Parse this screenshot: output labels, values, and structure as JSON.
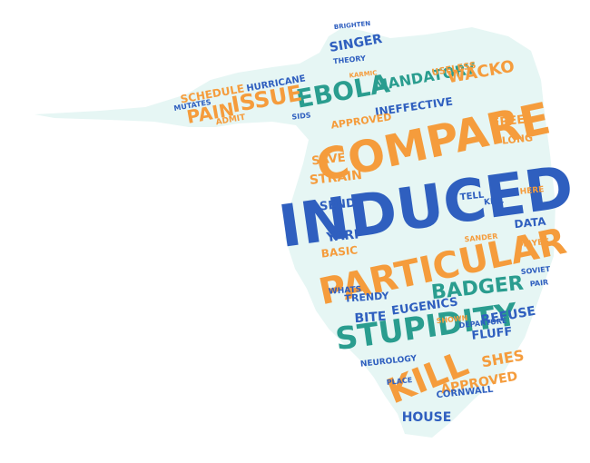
{
  "palette": {
    "shape_fill": "#e6f6f4",
    "orange": "#f59c3c",
    "blue": "#2f5fbf",
    "teal": "#2a9d8f",
    "gold": "#f2a65a"
  },
  "cloud": {
    "words": [
      {
        "text": "INDUCED",
        "color": "blue"
      },
      {
        "text": "COMPARE",
        "color": "orange"
      },
      {
        "text": "PARTICULAR",
        "color": "orange"
      },
      {
        "text": "STUPIDITY",
        "color": "teal"
      },
      {
        "text": "EBOLA",
        "color": "teal"
      },
      {
        "text": "KILL",
        "color": "orange"
      },
      {
        "text": "BADGER",
        "color": "teal"
      },
      {
        "text": "ISSUE",
        "color": "orange"
      },
      {
        "text": "PAIN",
        "color": "orange"
      },
      {
        "text": "MANDATORY",
        "color": "teal"
      },
      {
        "text": "WACKO",
        "color": "orange"
      },
      {
        "text": "SINGER",
        "color": "blue"
      },
      {
        "text": "INEFFECTIVE",
        "color": "blue"
      },
      {
        "text": "APPROVED",
        "color": "orange"
      },
      {
        "text": "APPROVED",
        "color": "orange"
      },
      {
        "text": "USELESS",
        "color": "orange"
      },
      {
        "text": "SCHEDULE",
        "color": "orange"
      },
      {
        "text": "EUGENICS",
        "color": "blue"
      },
      {
        "text": "REFUSE",
        "color": "blue"
      },
      {
        "text": "SHES",
        "color": "orange"
      },
      {
        "text": "HOUSE",
        "color": "blue"
      },
      {
        "text": "BITE",
        "color": "blue"
      },
      {
        "text": "FLUFF",
        "color": "blue"
      },
      {
        "text": "YARP",
        "color": "blue"
      },
      {
        "text": "SEND",
        "color": "blue"
      },
      {
        "text": "STRAIN",
        "color": "orange"
      },
      {
        "text": "SAVE",
        "color": "orange"
      },
      {
        "text": "FREE",
        "color": "orange"
      },
      {
        "text": "LONG",
        "color": "orange"
      },
      {
        "text": "DATA",
        "color": "blue"
      },
      {
        "text": "TELL",
        "color": "blue"
      },
      {
        "text": "TRENDY",
        "color": "blue"
      },
      {
        "text": "BASIC",
        "color": "orange"
      },
      {
        "text": "NEUROLOGY",
        "color": "blue"
      },
      {
        "text": "CORNWALL",
        "color": "blue"
      },
      {
        "text": "HURRICANE",
        "color": "blue"
      },
      {
        "text": "ADMIT",
        "color": "orange"
      },
      {
        "text": "MUTATES",
        "color": "blue"
      },
      {
        "text": "THEORY",
        "color": "blue"
      },
      {
        "text": "SIDS",
        "color": "blue"
      },
      {
        "text": "BRIGHTEN",
        "color": "blue"
      },
      {
        "text": "KARMIC",
        "color": "orange"
      },
      {
        "text": "SHOWN",
        "color": "orange"
      },
      {
        "text": "WHATS",
        "color": "blue"
      },
      {
        "text": "DEPARTURE",
        "color": "blue"
      },
      {
        "text": "HERE",
        "color": "orange"
      },
      {
        "text": "MAYBE",
        "color": "orange"
      },
      {
        "text": "SOVIET",
        "color": "blue"
      },
      {
        "text": "PAIR",
        "color": "blue"
      },
      {
        "text": "KILL",
        "color": "blue"
      },
      {
        "text": "PLACE",
        "color": "blue"
      },
      {
        "text": "SANDER",
        "color": "orange"
      }
    ]
  }
}
